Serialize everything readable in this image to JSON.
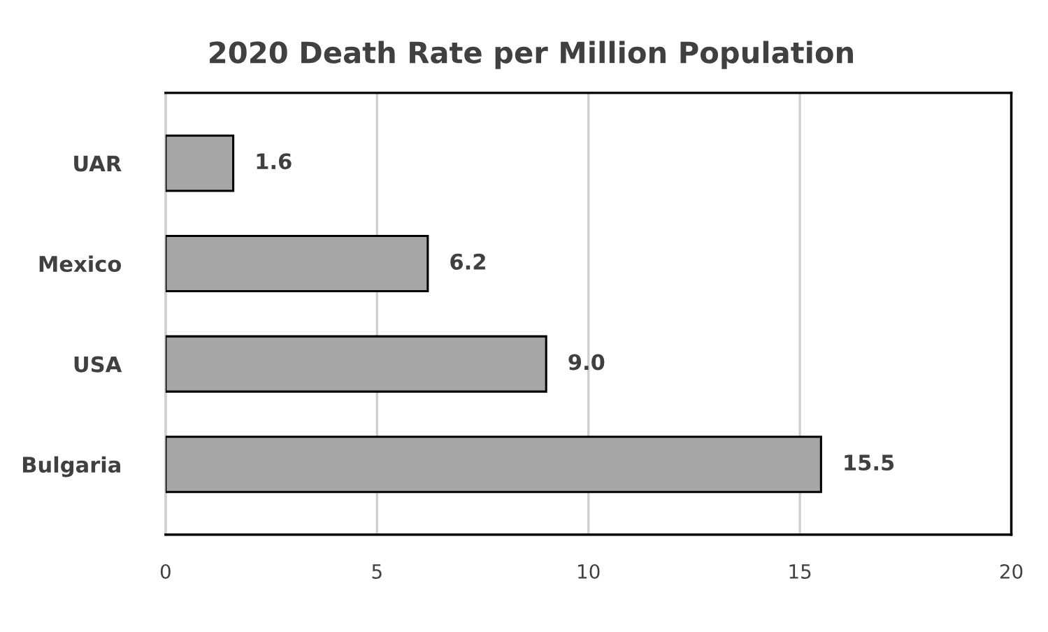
{
  "chart_data": {
    "type": "bar",
    "orientation": "horizontal",
    "title": "2020 Death Rate per Million Population",
    "categories": [
      "UAR",
      "Mexico",
      "USA",
      "Bulgaria"
    ],
    "values": [
      1.6,
      6.2,
      9.0,
      15.5
    ],
    "value_labels": [
      "1.6",
      "6.2",
      "9.0",
      "15.5"
    ],
    "color": "#a6a6a6",
    "xlim": [
      0,
      20
    ],
    "xticks": [
      0,
      5,
      10,
      15,
      20
    ],
    "grid": "x"
  }
}
